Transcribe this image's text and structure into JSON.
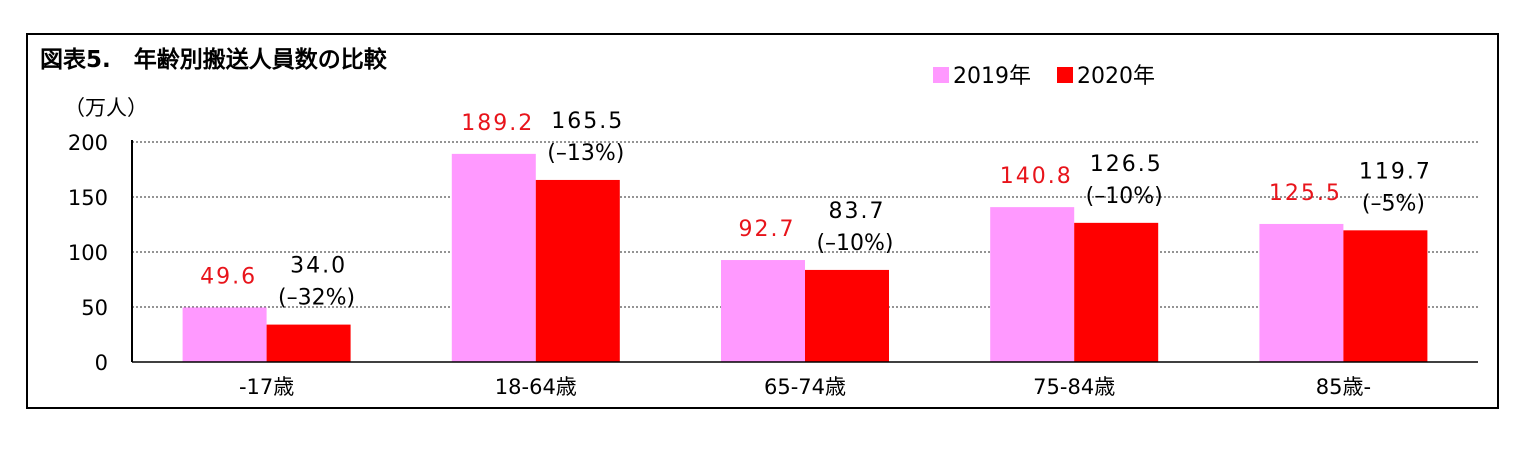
{
  "chart_data": {
    "type": "bar",
    "title": "図表5.　年齢別搬送人員数の比較",
    "ylabel": "（万人）",
    "xlabel": "",
    "ylim": [
      0,
      200
    ],
    "yticks": [
      0,
      50,
      100,
      150,
      200
    ],
    "grid": true,
    "legend_position": "top-right",
    "categories": [
      "-17歳",
      "18-64歳",
      "65-74歳",
      "75-84歳",
      "85歳-"
    ],
    "series": [
      {
        "name": "2019年",
        "color": "#ff99ff",
        "label_color": "#e8141b",
        "values": [
          49.6,
          189.2,
          92.7,
          140.8,
          125.5
        ],
        "labels": [
          "49.6",
          "189.2",
          "92.7",
          "140.8",
          "125.5"
        ]
      },
      {
        "name": "2020年",
        "color": "#ff0000",
        "label_color": "#000000",
        "values": [
          34.0,
          165.5,
          83.7,
          126.5,
          119.7
        ],
        "labels": [
          "34.0",
          "165.5",
          "83.7",
          "126.5",
          "119.7"
        ],
        "changes": [
          "(–32%)",
          "(–13%)",
          "(–10%)",
          "(–10%)",
          "(–5%)"
        ]
      }
    ]
  }
}
